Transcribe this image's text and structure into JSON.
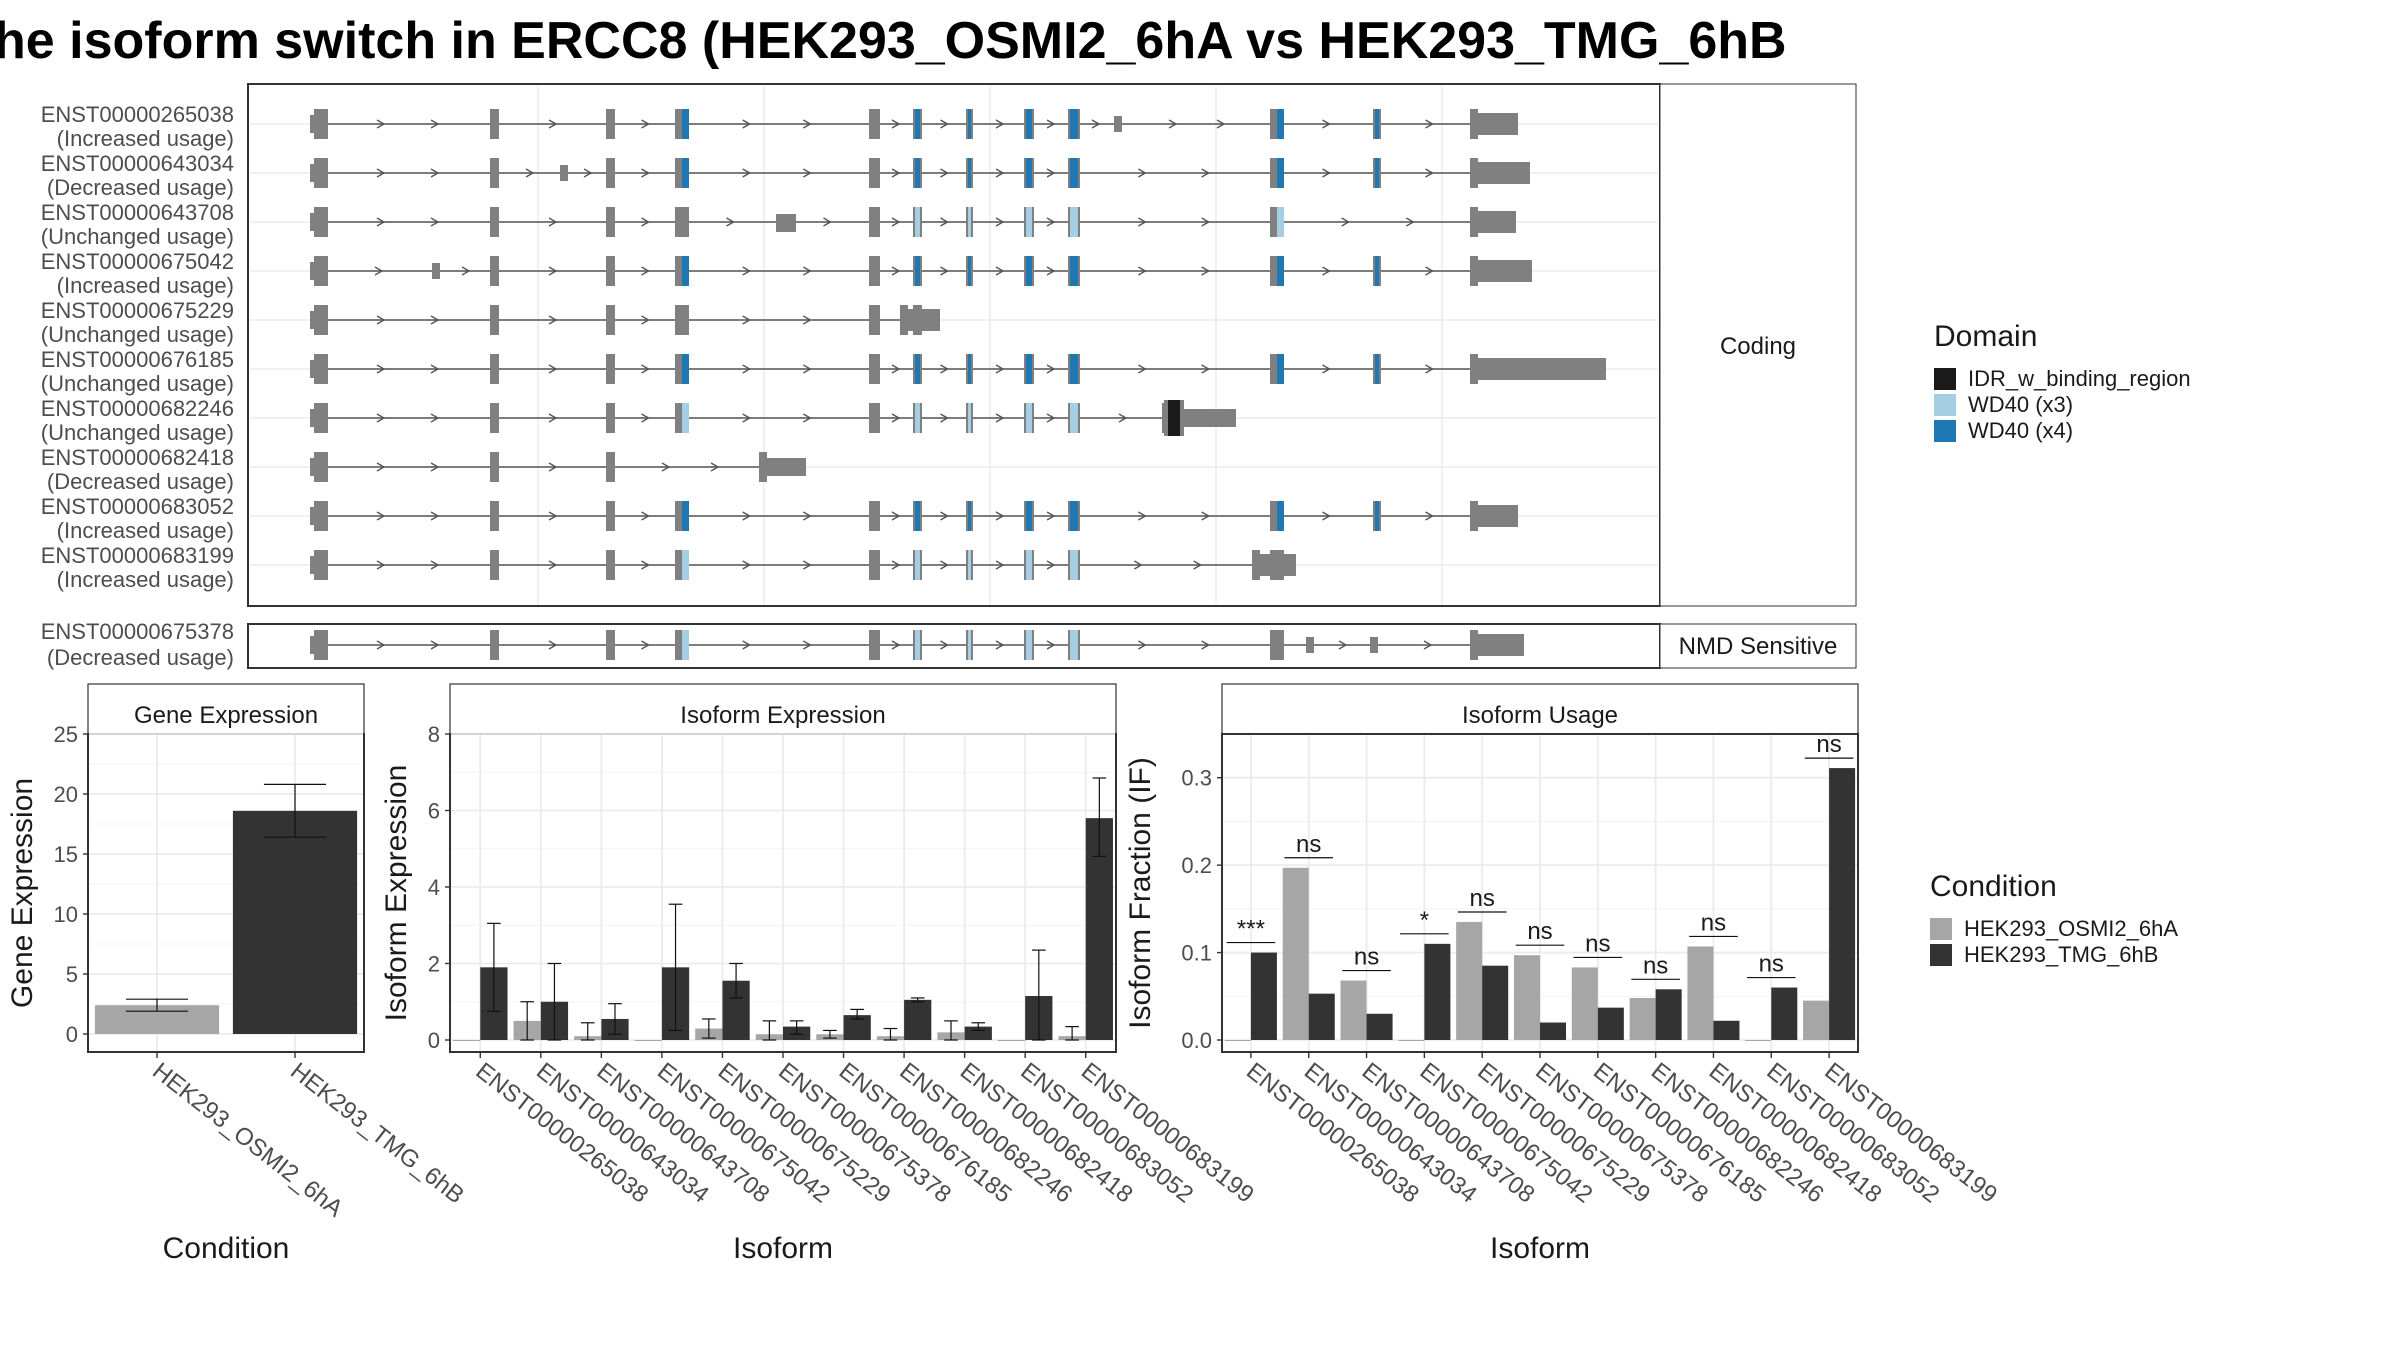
{
  "title": "he isoform switch in ERCC8 (HEK293_OSMI2_6hA vs HEK293_TMG_6hB",
  "colors": {
    "exon": "#808080",
    "wd40_x4": "#1f78b4",
    "wd40_x3": "#a6cee3",
    "idr": "#1a1a1a",
    "cond_a": "#a6a6a6",
    "cond_b": "#333333"
  },
  "structure": {
    "strip_coding": "Coding",
    "strip_nmd": "NMD Sensitive",
    "coding_transcripts": [
      {
        "id": "ENST00000265038",
        "usage": "(Increased usage)"
      },
      {
        "id": "ENST00000643034",
        "usage": "(Decreased usage)"
      },
      {
        "id": "ENST00000643708",
        "usage": "(Unchanged usage)"
      },
      {
        "id": "ENST00000675042",
        "usage": "(Increased usage)"
      },
      {
        "id": "ENST00000675229",
        "usage": "(Unchanged usage)"
      },
      {
        "id": "ENST00000676185",
        "usage": "(Unchanged usage)"
      },
      {
        "id": "ENST00000682246",
        "usage": "(Unchanged usage)"
      },
      {
        "id": "ENST00000682418",
        "usage": "(Decreased usage)"
      },
      {
        "id": "ENST00000683052",
        "usage": "(Increased usage)"
      },
      {
        "id": "ENST00000683199",
        "usage": "(Increased usage)"
      }
    ],
    "nmd_transcripts": [
      {
        "id": "ENST00000675378",
        "usage": "(Decreased usage)"
      }
    ]
  },
  "legend_domain": {
    "title": "Domain",
    "items": [
      {
        "label": "IDR_w_binding_region",
        "color": "#1a1a1a"
      },
      {
        "label": "WD40 (x3)",
        "color": "#a6cee3"
      },
      {
        "label": "WD40 (x4)",
        "color": "#1f78b4"
      }
    ]
  },
  "legend_condition": {
    "title": "Condition",
    "items": [
      {
        "label": "HEK293_OSMI2_6hA",
        "color": "#a6a6a6"
      },
      {
        "label": "HEK293_TMG_6hB",
        "color": "#333333"
      }
    ]
  },
  "chart_data": [
    {
      "type": "bar",
      "title": "Gene Expression",
      "xlabel": "Condition",
      "ylabel": "Gene Expression",
      "ylim": [
        0,
        25
      ],
      "yticks": [
        0,
        5,
        10,
        15,
        20,
        25
      ],
      "categories": [
        "HEK293_OSMI2_6hA",
        "HEK293_TMG_6hB"
      ],
      "values": [
        2.4,
        18.6
      ],
      "errors": [
        [
          1.9,
          2.9
        ],
        [
          16.4,
          20.8
        ]
      ]
    },
    {
      "type": "bar",
      "title": "Isoform Expression",
      "xlabel": "Isoform",
      "ylabel": "Isoform Expression",
      "ylim": [
        0,
        8
      ],
      "yticks": [
        0,
        2,
        4,
        6,
        8
      ],
      "categories": [
        "ENST00000265038",
        "ENST00000643034",
        "ENST00000643708",
        "ENST00000675042",
        "ENST00000675229",
        "ENST00000675378",
        "ENST00000676185",
        "ENST00000682246",
        "ENST00000682418",
        "ENST00000683052",
        "ENST00000683199"
      ],
      "series": [
        {
          "name": "HEK293_OSMI2_6hA",
          "values": [
            0.0,
            0.5,
            0.1,
            0.0,
            0.3,
            0.15,
            0.15,
            0.1,
            0.2,
            0.0,
            0.1
          ],
          "errors": [
            [
              0.0,
              0.0
            ],
            [
              0.0,
              1.0
            ],
            [
              0.0,
              0.45
            ],
            [
              0.0,
              0.0
            ],
            [
              0.05,
              0.55
            ],
            [
              0.0,
              0.5
            ],
            [
              0.05,
              0.25
            ],
            [
              0.0,
              0.3
            ],
            [
              0.0,
              0.5
            ],
            [
              0.0,
              0.0
            ],
            [
              0.0,
              0.35
            ]
          ]
        },
        {
          "name": "HEK293_TMG_6hB",
          "values": [
            1.9,
            1.0,
            0.55,
            1.9,
            1.55,
            0.35,
            0.65,
            1.05,
            0.35,
            1.15,
            5.8
          ],
          "errors": [
            [
              0.75,
              3.05
            ],
            [
              0.0,
              2.0
            ],
            [
              0.15,
              0.95
            ],
            [
              0.25,
              3.55
            ],
            [
              1.1,
              2.0
            ],
            [
              0.15,
              0.5
            ],
            [
              0.55,
              0.8
            ],
            [
              1.0,
              1.1
            ],
            [
              0.25,
              0.45
            ],
            [
              0.0,
              2.35
            ],
            [
              4.8,
              6.85
            ]
          ]
        }
      ]
    },
    {
      "type": "bar",
      "title": "Isoform Usage",
      "xlabel": "Isoform",
      "ylabel": "Isoform Fraction (IF)",
      "ylim": [
        0,
        0.35
      ],
      "yticks": [
        0.0,
        0.1,
        0.2,
        0.3
      ],
      "ytick_labels": [
        "0.0",
        "0.1",
        "0.2",
        "0.3"
      ],
      "categories": [
        "ENST00000265038",
        "ENST00000643034",
        "ENST00000643708",
        "ENST00000675042",
        "ENST00000675229",
        "ENST00000675378",
        "ENST00000676185",
        "ENST00000682246",
        "ENST00000682418",
        "ENST00000683052",
        "ENST00000683199"
      ],
      "series": [
        {
          "name": "HEK293_OSMI2_6hA",
          "values": [
            0.0,
            0.197,
            0.068,
            0.0,
            0.135,
            0.097,
            0.083,
            0.048,
            0.107,
            0.0,
            0.045
          ]
        },
        {
          "name": "HEK293_TMG_6hB",
          "values": [
            0.1,
            0.053,
            0.03,
            0.11,
            0.085,
            0.02,
            0.037,
            0.058,
            0.022,
            0.06,
            0.311
          ]
        }
      ],
      "significance": [
        "***",
        "ns",
        "ns",
        "*",
        "ns",
        "ns",
        "ns",
        "ns",
        "ns",
        "ns",
        "ns"
      ]
    }
  ]
}
